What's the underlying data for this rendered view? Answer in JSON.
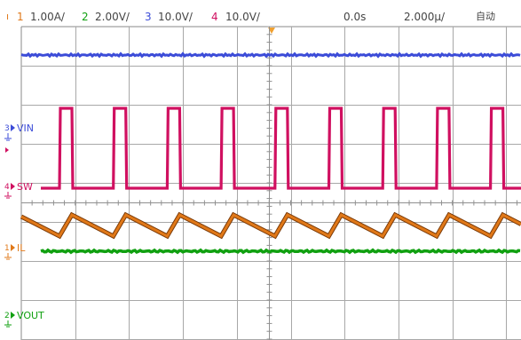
{
  "statusbar": {
    "ch1_num": "1",
    "ch1_scale": "1.00A/",
    "ch2_num": "2",
    "ch2_scale": "2.00V/",
    "ch3_num": "3",
    "ch3_scale": "10.0V/",
    "ch4_num": "4",
    "ch4_scale": "10.0V/",
    "time_delay": "0.0s",
    "time_scale": "2.000µ/",
    "trigger_mode": "自动"
  },
  "channels": {
    "vin_label": "VIN",
    "sw_label": "SW",
    "il_label": "IL",
    "vout_label": "VOUT"
  },
  "colors": {
    "ch1": "#e07818",
    "ch2": "#10a010",
    "ch3": "#3c4cd8",
    "ch4": "#d01060",
    "grid": "#a8a8a8",
    "trigger": "#f0a030"
  }
}
